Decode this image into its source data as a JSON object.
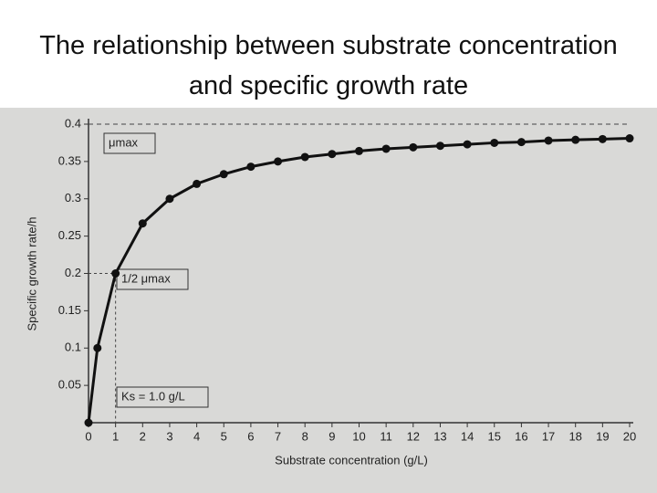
{
  "chart_data": {
    "type": "line",
    "title": "The relationship between substrate concentration and specific growth rate",
    "x_label": "Substrate concentration (g/L)",
    "y_label": "Specific growth rate/h",
    "x": [
      0,
      0.33,
      1,
      2,
      3,
      4,
      5,
      6,
      7,
      8,
      9,
      10,
      11,
      12,
      13,
      14,
      15,
      16,
      17,
      18,
      19,
      20
    ],
    "series": [
      {
        "name": "Specific growth rate",
        "color": "#111111",
        "values": [
          0,
          0.1,
          0.2,
          0.267,
          0.3,
          0.32,
          0.333,
          0.343,
          0.35,
          0.356,
          0.36,
          0.364,
          0.367,
          0.369,
          0.371,
          0.373,
          0.375,
          0.376,
          0.378,
          0.379,
          0.38,
          0.381
        ]
      }
    ],
    "xlim": [
      0,
      20
    ],
    "xticks": [
      0,
      1,
      2,
      3,
      4,
      5,
      6,
      7,
      8,
      9,
      10,
      11,
      12,
      13,
      14,
      15,
      16,
      17,
      18,
      19,
      20
    ],
    "ylim": [
      0,
      0.4
    ],
    "yticks": [
      0.05,
      0.1,
      0.15,
      0.2,
      0.25,
      0.3,
      0.35,
      0.4
    ],
    "annotations": [
      "μmax",
      "1/2 μmax",
      "Ks = 1.0 g/L"
    ]
  }
}
